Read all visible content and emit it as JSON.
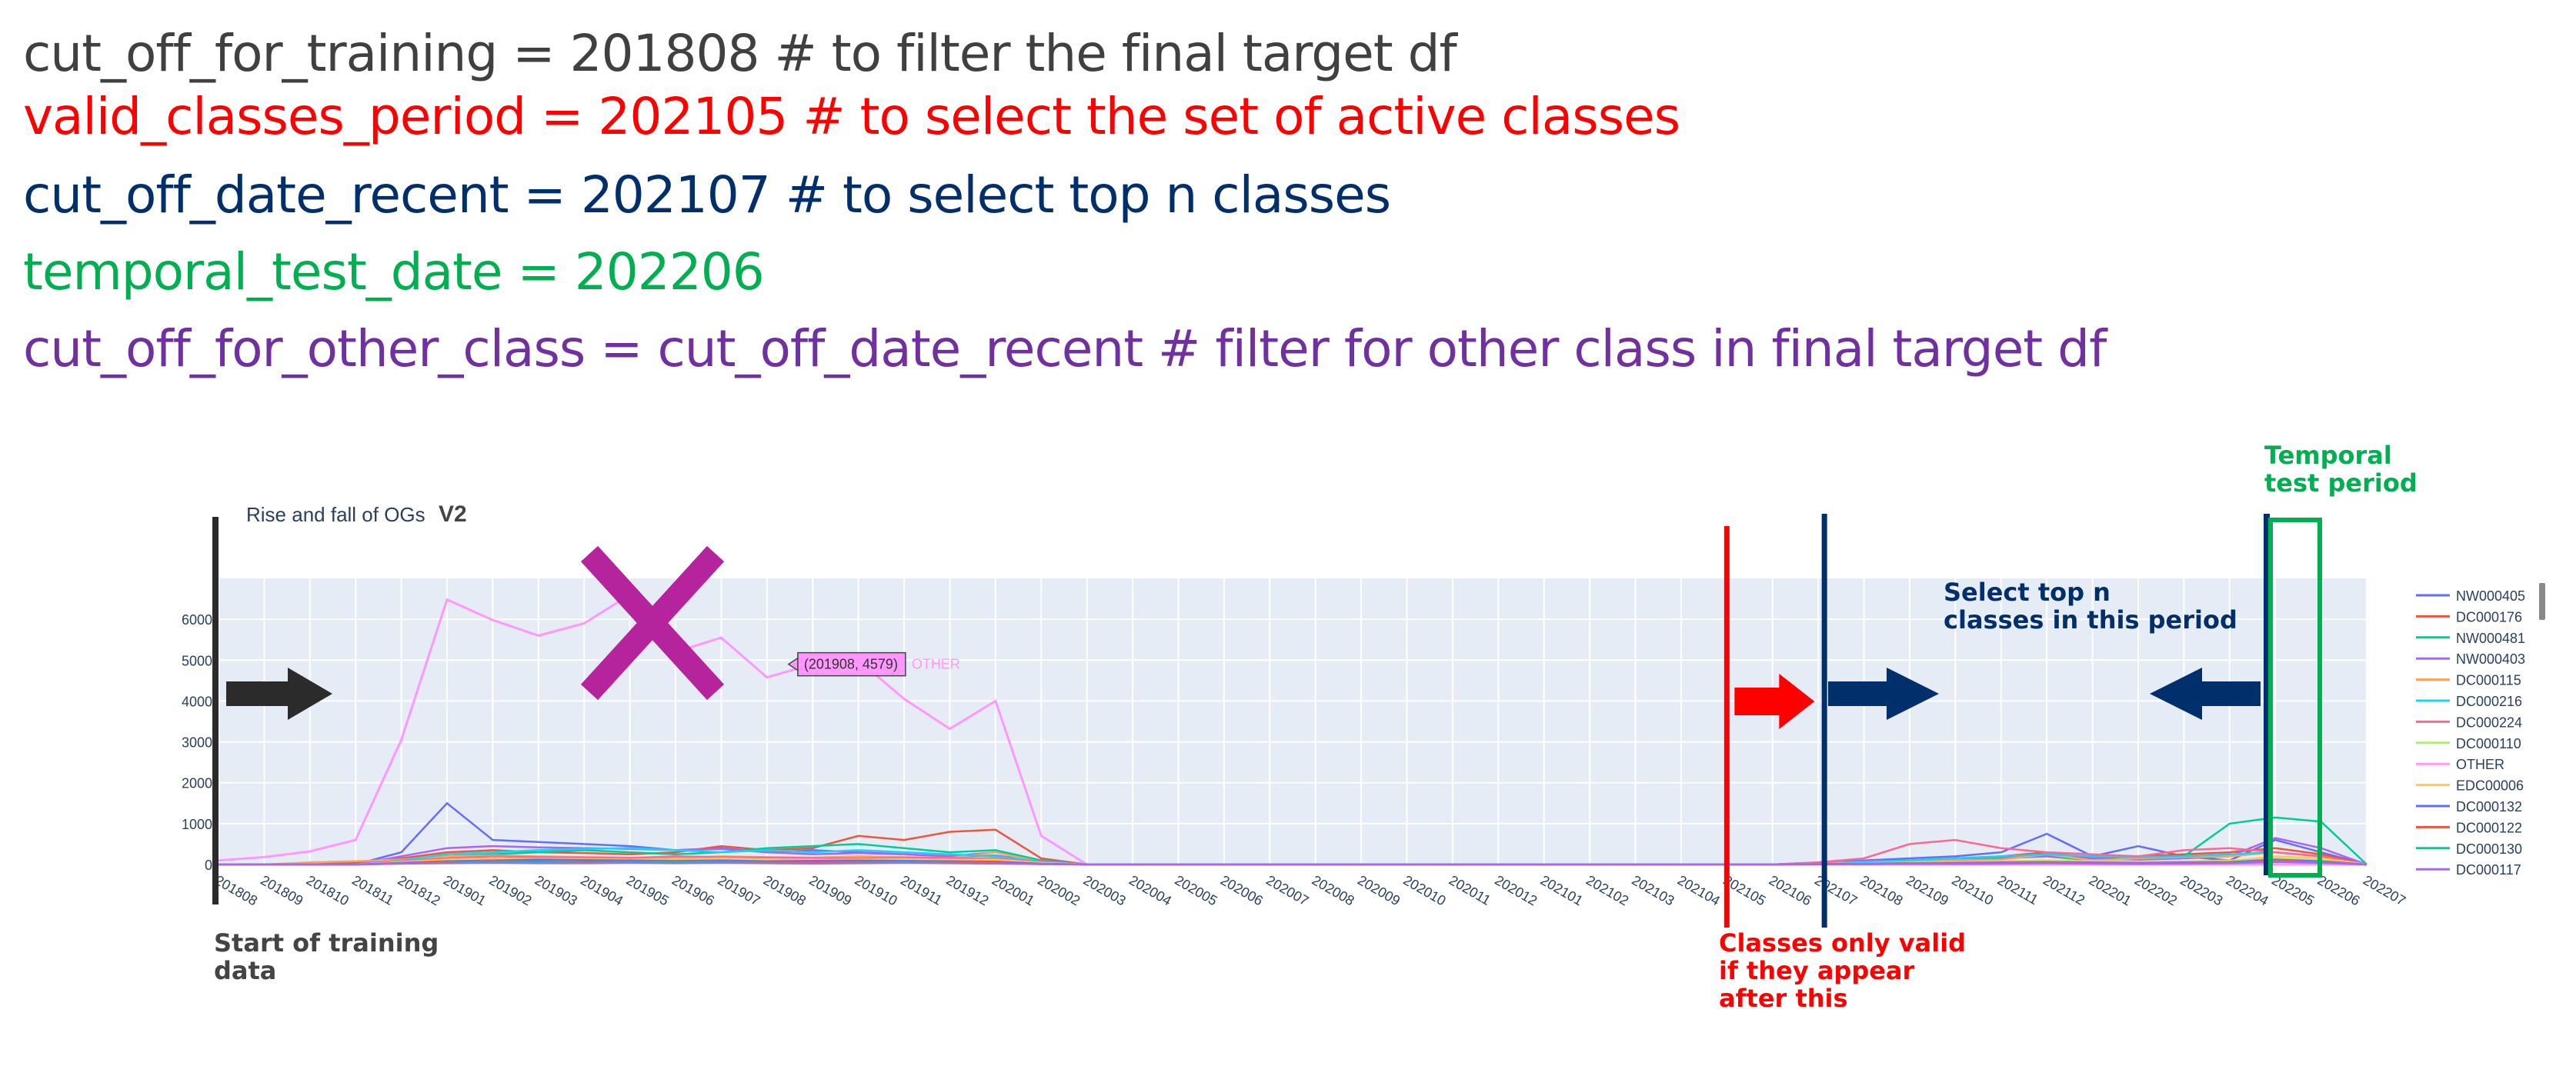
{
  "code_lines": [
    {
      "text": "cut_off_for_training = 201808 # to filter the final target df",
      "color": "#404040"
    },
    {
      "text": "valid_classes_period = 202105 # to select the set of active classes",
      "color": "#ff0000"
    },
    {
      "text": "cut_off_date_recent = 202107 # to select top n classes",
      "color": "#002f6c"
    },
    {
      "text": "temporal_test_date = 202206",
      "color": "#00b050"
    },
    {
      "text": "cut_off_for_other_class = cut_off_date_recent # filter for other class in final target df",
      "color": "#7030a0"
    }
  ],
  "annotations": {
    "start_of_training": "Start of training\ndata",
    "classes_valid": "Classes only valid\nif they appear\nafter this",
    "select_top_n": "Select top n\nclasses in this period",
    "temporal_test": "Temporal\ntest period",
    "colors": {
      "black": "#2b2b2b",
      "red": "#ff0000",
      "navy": "#002f6c",
      "green": "#00b050",
      "magenta": "#b5249d"
    }
  },
  "chart_data": {
    "type": "line",
    "title": "Rise and fall of OGs",
    "title_suffix": "V2",
    "ylim": [
      0,
      7000
    ],
    "yticks": [
      0,
      1000,
      2000,
      3000,
      4000,
      5000,
      6000
    ],
    "categories": [
      "201808",
      "201809",
      "201810",
      "201811",
      "201812",
      "201901",
      "201902",
      "201903",
      "201904",
      "201905",
      "201906",
      "201907",
      "201908",
      "201909",
      "201910",
      "201911",
      "201912",
      "202001",
      "202002",
      "202003",
      "202004",
      "202005",
      "202006",
      "202007",
      "202008",
      "202009",
      "202010",
      "202011",
      "202012",
      "202101",
      "202102",
      "202103",
      "202104",
      "202105",
      "202106",
      "202107",
      "202108",
      "202109",
      "202110",
      "202111",
      "202112",
      "202201",
      "202202",
      "202203",
      "202204",
      "202205",
      "202206",
      "202207"
    ],
    "tooltip": {
      "text": "(201908, 4579)",
      "series": "OTHER"
    },
    "series": [
      {
        "name": "NW000405",
        "color": "#636efa",
        "values": [
          0,
          0,
          0,
          0,
          300,
          1500,
          600,
          550,
          500,
          450,
          350,
          400,
          300,
          350,
          300,
          250,
          200,
          300,
          100,
          0,
          0,
          0,
          0,
          0,
          0,
          0,
          0,
          0,
          0,
          0,
          0,
          0,
          0,
          0,
          0,
          50,
          100,
          150,
          200,
          300,
          750,
          200,
          450,
          200,
          100,
          600,
          300,
          0
        ]
      },
      {
        "name": "DC000176",
        "color": "#ef553b",
        "values": [
          0,
          0,
          0,
          50,
          150,
          300,
          350,
          300,
          280,
          250,
          300,
          450,
          350,
          400,
          700,
          600,
          800,
          850,
          150,
          0,
          0,
          0,
          0,
          0,
          0,
          0,
          0,
          0,
          0,
          0,
          0,
          0,
          0,
          0,
          0,
          30,
          80,
          100,
          150,
          200,
          300,
          150,
          200,
          250,
          300,
          400,
          250,
          0
        ]
      },
      {
        "name": "NW000481",
        "color": "#00cc96",
        "values": [
          0,
          0,
          0,
          0,
          100,
          200,
          250,
          300,
          350,
          300,
          250,
          300,
          400,
          450,
          500,
          400,
          300,
          350,
          100,
          0,
          0,
          0,
          0,
          0,
          0,
          0,
          0,
          0,
          0,
          0,
          0,
          0,
          0,
          0,
          0,
          20,
          50,
          80,
          100,
          150,
          200,
          100,
          150,
          200,
          1000,
          1150,
          1050,
          0
        ]
      },
      {
        "name": "NW000403",
        "color": "#ab63fa",
        "values": [
          0,
          0,
          0,
          0,
          200,
          400,
          450,
          420,
          400,
          380,
          350,
          380,
          300,
          250,
          280,
          250,
          200,
          220,
          80,
          0,
          0,
          0,
          0,
          0,
          0,
          0,
          0,
          0,
          0,
          0,
          0,
          0,
          0,
          0,
          0,
          40,
          80,
          100,
          150,
          180,
          200,
          150,
          120,
          150,
          200,
          650,
          400,
          0
        ]
      },
      {
        "name": "DC000115",
        "color": "#ffa15a",
        "values": [
          0,
          0,
          50,
          80,
          120,
          200,
          220,
          200,
          180,
          170,
          160,
          200,
          180,
          170,
          200,
          180,
          160,
          300,
          60,
          0,
          0,
          0,
          0,
          0,
          0,
          0,
          0,
          0,
          0,
          0,
          0,
          0,
          0,
          0,
          0,
          30,
          60,
          80,
          100,
          120,
          250,
          100,
          150,
          180,
          200,
          300,
          200,
          0
        ]
      },
      {
        "name": "DC000216",
        "color": "#19d3f3",
        "values": [
          0,
          0,
          0,
          0,
          100,
          250,
          300,
          350,
          380,
          400,
          350,
          300,
          350,
          300,
          350,
          300,
          250,
          200,
          70,
          0,
          0,
          0,
          0,
          0,
          0,
          0,
          0,
          0,
          0,
          0,
          0,
          0,
          0,
          0,
          0,
          20,
          60,
          100,
          150,
          200,
          250,
          200,
          180,
          200,
          250,
          300,
          200,
          0
        ]
      },
      {
        "name": "DC000224",
        "color": "#ff6692",
        "values": [
          0,
          0,
          0,
          0,
          80,
          150,
          200,
          180,
          170,
          160,
          200,
          180,
          170,
          160,
          150,
          170,
          160,
          150,
          50,
          0,
          0,
          0,
          0,
          0,
          0,
          0,
          0,
          0,
          0,
          0,
          0,
          0,
          0,
          0,
          0,
          50,
          150,
          500,
          600,
          400,
          300,
          250,
          200,
          350,
          400,
          300,
          200,
          0
        ]
      },
      {
        "name": "DC000110",
        "color": "#b6e880",
        "values": [
          0,
          0,
          0,
          0,
          50,
          100,
          120,
          110,
          100,
          110,
          120,
          110,
          100,
          90,
          100,
          110,
          100,
          90,
          30,
          0,
          0,
          0,
          0,
          0,
          0,
          0,
          0,
          0,
          0,
          0,
          0,
          0,
          0,
          0,
          0,
          10,
          30,
          50,
          60,
          80,
          100,
          80,
          70,
          80,
          100,
          150,
          100,
          0
        ]
      },
      {
        "name": "OTHER",
        "color": "#ff97ff",
        "values": [
          100,
          180,
          320,
          600,
          3050,
          6480,
          5980,
          5600,
          5900,
          6600,
          5200,
          5550,
          4579,
          4900,
          5000,
          4050,
          3320,
          4000,
          700,
          0,
          0,
          0,
          0,
          0,
          0,
          0,
          0,
          0,
          0,
          0,
          0,
          0,
          0,
          0,
          0,
          0,
          0,
          0,
          0,
          0,
          0,
          0,
          0,
          0,
          0,
          0,
          0,
          0
        ]
      },
      {
        "name": "EDC00006",
        "color": "#fecb52",
        "values": [
          0,
          0,
          0,
          0,
          60,
          120,
          150,
          140,
          130,
          120,
          130,
          150,
          120,
          110,
          120,
          130,
          110,
          120,
          40,
          0,
          0,
          0,
          0,
          0,
          0,
          0,
          0,
          0,
          0,
          0,
          0,
          0,
          0,
          0,
          0,
          10,
          30,
          40,
          50,
          70,
          80,
          60,
          50,
          60,
          80,
          200,
          150,
          0
        ]
      },
      {
        "name": "DC000132",
        "color": "#636efa",
        "values": [
          0,
          0,
          0,
          0,
          40,
          80,
          100,
          120,
          110,
          100,
          90,
          100,
          80,
          90,
          100,
          90,
          80,
          70,
          20,
          0,
          0,
          0,
          0,
          0,
          0,
          0,
          0,
          0,
          0,
          0,
          0,
          0,
          0,
          0,
          0,
          10,
          20,
          30,
          40,
          50,
          60,
          50,
          40,
          50,
          60,
          120,
          80,
          0
        ]
      },
      {
        "name": "DC000122",
        "color": "#ef553b",
        "values": [
          0,
          0,
          0,
          0,
          30,
          60,
          80,
          70,
          60,
          70,
          80,
          70,
          60,
          50,
          60,
          70,
          60,
          50,
          15,
          0,
          0,
          0,
          0,
          0,
          0,
          0,
          0,
          0,
          0,
          0,
          0,
          0,
          0,
          0,
          0,
          10,
          20,
          30,
          30,
          40,
          50,
          40,
          30,
          40,
          50,
          100,
          60,
          0
        ]
      },
      {
        "name": "DC000130",
        "color": "#00cc96",
        "values": [
          0,
          0,
          0,
          0,
          20,
          40,
          60,
          50,
          40,
          50,
          60,
          50,
          40,
          30,
          40,
          50,
          40,
          30,
          10,
          0,
          0,
          0,
          0,
          0,
          0,
          0,
          0,
          0,
          0,
          0,
          0,
          0,
          0,
          0,
          0,
          5,
          10,
          20,
          20,
          30,
          40,
          30,
          20,
          30,
          40,
          80,
          50,
          0
        ]
      },
      {
        "name": "DC000117",
        "color": "#ab63fa",
        "values": [
          0,
          0,
          0,
          0,
          20,
          30,
          40,
          30,
          30,
          40,
          30,
          40,
          30,
          20,
          30,
          40,
          30,
          20,
          10,
          0,
          0,
          0,
          0,
          0,
          0,
          0,
          0,
          0,
          0,
          0,
          0,
          0,
          0,
          0,
          0,
          5,
          10,
          15,
          15,
          20,
          30,
          20,
          15,
          20,
          30,
          60,
          40,
          0
        ]
      }
    ],
    "grid": true,
    "legend_position": "right",
    "plot_background": "#e5ecf6"
  }
}
